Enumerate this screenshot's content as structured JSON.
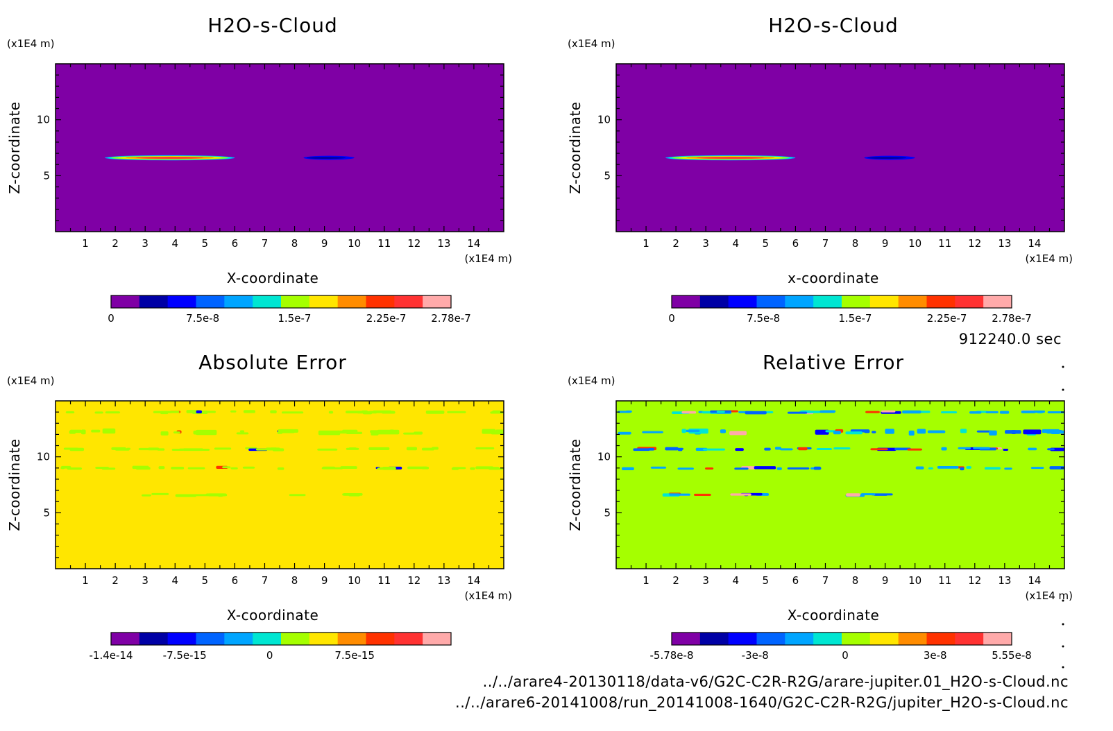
{
  "time_label": "912240.0 sec",
  "files": [
    "../../arare4-20130118/data-v6/G2C-C2R-R2G/arare-jupiter.01_H2O-s-Cloud.nc",
    "../../arare6-20141008/run_20141008-1640/G2C-C2R-R2G/jupiter_H2O-s-Cloud.nc"
  ],
  "colors": {
    "purple": "#7F00A5",
    "navy": "#0000A5",
    "blue": "#0000FF",
    "azure": "#0064FF",
    "sky": "#00A5FF",
    "cyan": "#00E6D2",
    "lime": "#A5FF00",
    "yellow": "#FFE600",
    "orange": "#FF8C00",
    "redorange": "#FF3200",
    "red": "#FF3232",
    "pink": "#FFAAAA"
  },
  "chart_data": [
    {
      "type": "heatmap",
      "title": "H2O-s-Cloud",
      "xlabel": "X-coordinate",
      "ylabel": "Z-coordinate",
      "x_unit": "(x1E4 m)",
      "y_unit": "(x1E4 m)",
      "xlim": [
        0,
        15
      ],
      "ylim": [
        0,
        15
      ],
      "xticks": [
        1,
        2,
        3,
        4,
        5,
        6,
        7,
        8,
        9,
        10,
        11,
        12,
        13,
        14
      ],
      "yticks": [
        5,
        10
      ],
      "background": "purple",
      "features": [
        {
          "x": [
            1.65,
            6.0
          ],
          "z": [
            6.4,
            6.8
          ],
          "kind": "cloud-strong"
        },
        {
          "x": [
            8.3,
            10.0
          ],
          "z": [
            6.45,
            6.75
          ],
          "kind": "cloud-weak"
        }
      ],
      "colorbar": {
        "colors": [
          "purple",
          "navy",
          "blue",
          "azure",
          "sky",
          "cyan",
          "lime",
          "yellow",
          "orange",
          "redorange",
          "red",
          "pink"
        ],
        "range": [
          0,
          2.78e-07
        ],
        "tick_labels": [
          {
            "value": 0,
            "label": "0"
          },
          {
            "value": 7.5e-08,
            "label": "7.5e-8"
          },
          {
            "value": 1.5e-07,
            "label": "1.5e-7"
          },
          {
            "value": 2.25e-07,
            "label": "2.25e-7"
          },
          {
            "value": 2.78e-07,
            "label": "2.78e-7"
          }
        ]
      }
    },
    {
      "type": "heatmap",
      "title": "H2O-s-Cloud",
      "xlabel": "x-coordinate",
      "ylabel": "Z-coordinate",
      "x_unit": "(x1E4 m)",
      "y_unit": "(x1E4 m)",
      "xlim": [
        0,
        15
      ],
      "ylim": [
        0,
        15
      ],
      "xticks": [
        1,
        2,
        3,
        4,
        5,
        6,
        7,
        8,
        9,
        10,
        11,
        12,
        13,
        14
      ],
      "yticks": [
        5,
        10
      ],
      "background": "purple",
      "features": [
        {
          "x": [
            1.65,
            6.0
          ],
          "z": [
            6.4,
            6.8
          ],
          "kind": "cloud-strong"
        },
        {
          "x": [
            8.3,
            10.0
          ],
          "z": [
            6.45,
            6.75
          ],
          "kind": "cloud-weak"
        }
      ],
      "colorbar": {
        "colors": [
          "purple",
          "navy",
          "blue",
          "azure",
          "sky",
          "cyan",
          "lime",
          "yellow",
          "orange",
          "redorange",
          "red",
          "pink"
        ],
        "range": [
          0,
          2.78e-07
        ],
        "tick_labels": [
          {
            "value": 0,
            "label": "0"
          },
          {
            "value": 7.5e-08,
            "label": "7.5e-8"
          },
          {
            "value": 1.5e-07,
            "label": "1.5e-7"
          },
          {
            "value": 2.25e-07,
            "label": "2.25e-7"
          },
          {
            "value": 2.78e-07,
            "label": "2.78e-7"
          }
        ]
      }
    },
    {
      "type": "heatmap",
      "title": "Absolute Error",
      "xlabel": "X-coordinate",
      "ylabel": "Z-coordinate",
      "x_unit": "(x1E4 m)",
      "y_unit": "(x1E4 m)",
      "xlim": [
        0,
        15
      ],
      "ylim": [
        0,
        15
      ],
      "xticks": [
        1,
        2,
        3,
        4,
        5,
        6,
        7,
        8,
        9,
        10,
        11,
        12,
        13,
        14
      ],
      "yticks": [
        5,
        10
      ],
      "background": "yellow",
      "features": [
        {
          "x": [
            0,
            15
          ],
          "z": [
            13.9,
            14.1
          ],
          "kind": "noise-band"
        },
        {
          "x": [
            0,
            15
          ],
          "z": [
            12.0,
            12.4
          ],
          "kind": "noise-band"
        },
        {
          "x": [
            0,
            15
          ],
          "z": [
            10.6,
            10.8
          ],
          "kind": "noise-band"
        },
        {
          "x": [
            0,
            15
          ],
          "z": [
            8.9,
            9.1
          ],
          "kind": "noise-band"
        },
        {
          "x": [
            1.4,
            10.0
          ],
          "z": [
            6.5,
            6.7
          ],
          "kind": "noise-band"
        }
      ],
      "colorbar": {
        "colors": [
          "purple",
          "navy",
          "blue",
          "azure",
          "sky",
          "cyan",
          "lime",
          "yellow",
          "orange",
          "redorange",
          "red",
          "pink"
        ],
        "range": [
          -1.4e-14,
          1.6e-14
        ],
        "tick_labels": [
          {
            "value": -1.4e-14,
            "label": "-1.4e-14"
          },
          {
            "value": -7.5e-15,
            "label": "-7.5e-15"
          },
          {
            "value": 0,
            "label": "0"
          },
          {
            "value": 7.5e-15,
            "label": "7.5e-15"
          }
        ]
      }
    },
    {
      "type": "heatmap",
      "title": "Relative Error",
      "xlabel": "X-coordinate",
      "ylabel": "Z-coordinate",
      "x_unit": "(x1E4 m)",
      "y_unit": "(x1E4 m)",
      "xlim": [
        0,
        15
      ],
      "ylim": [
        0,
        15
      ],
      "xticks": [
        1,
        2,
        3,
        4,
        5,
        6,
        7,
        8,
        9,
        10,
        11,
        12,
        13,
        14
      ],
      "yticks": [
        5,
        10
      ],
      "background": "lime",
      "features": [
        {
          "x": [
            0,
            15
          ],
          "z": [
            13.9,
            14.1
          ],
          "kind": "noise-band"
        },
        {
          "x": [
            0,
            15
          ],
          "z": [
            12.0,
            12.4
          ],
          "kind": "noise-band"
        },
        {
          "x": [
            0,
            15
          ],
          "z": [
            10.6,
            10.8
          ],
          "kind": "noise-band"
        },
        {
          "x": [
            0,
            15
          ],
          "z": [
            8.9,
            9.1
          ],
          "kind": "noise-band"
        },
        {
          "x": [
            1.4,
            10.0
          ],
          "z": [
            6.5,
            6.7
          ],
          "kind": "noise-band"
        }
      ],
      "colorbar": {
        "colors": [
          "purple",
          "navy",
          "blue",
          "azure",
          "sky",
          "cyan",
          "lime",
          "yellow",
          "orange",
          "redorange",
          "red",
          "pink"
        ],
        "range": [
          -5.78e-08,
          5.55e-08
        ],
        "tick_labels": [
          {
            "value": -5.78e-08,
            "label": "-5.78e-8"
          },
          {
            "value": -3e-08,
            "label": "-3e-8"
          },
          {
            "value": 0,
            "label": "0"
          },
          {
            "value": 3e-08,
            "label": "3e-8"
          },
          {
            "value": 5.55e-08,
            "label": "5.55e-8"
          }
        ]
      }
    }
  ]
}
